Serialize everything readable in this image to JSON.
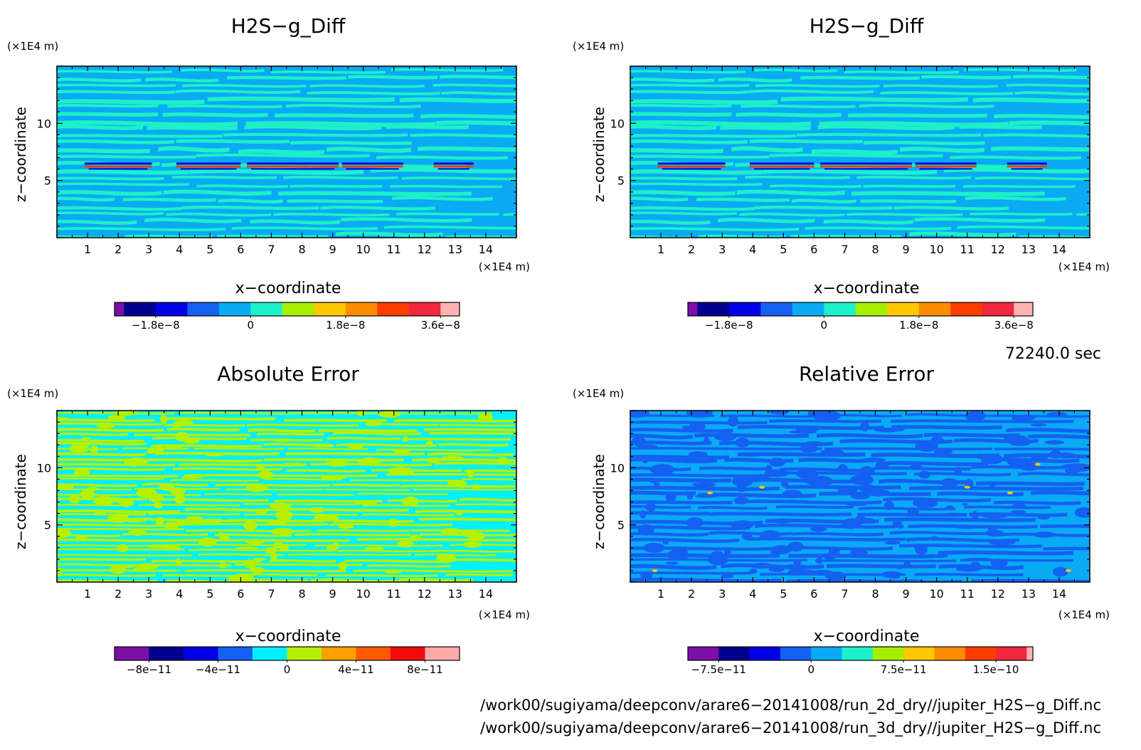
{
  "panels": [
    {
      "id": "top-left",
      "title": "H2S−g_Diff",
      "x_unit": "(×1E4 m)",
      "z_unit": "(×1E4 m)",
      "xlabel": "x−coordinate",
      "ylabel": "z−coordinate",
      "x_ticks": [
        "1",
        "2",
        "3",
        "4",
        "5",
        "6",
        "7",
        "8",
        "9",
        "10",
        "11",
        "12",
        "13",
        "14"
      ],
      "y_ticks": [
        "5",
        "10"
      ],
      "colorbar": {
        "colors": [
          "#7b0fa6",
          "#00008c",
          "#0000e6",
          "#1460f0",
          "#0aaaf5",
          "#1ef0c8",
          "#a6ee00",
          "#ffc800",
          "#ff8c00",
          "#ff3c00",
          "#f0283c",
          "#ffb4b4"
        ],
        "widths": [
          0.3,
          1,
          1,
          1,
          1,
          1,
          1,
          1,
          1,
          1,
          1,
          0.6
        ],
        "labels": [
          "−1.8e−8",
          "0",
          "1.8e−8",
          "3.6e−8"
        ],
        "label_pos": [
          1.3,
          4.3,
          7.3,
          10.3
        ]
      },
      "field": {
        "background": "#0aaaf5",
        "stripe": "#1ef0c8",
        "accent_cool": "#0000e6",
        "accent_warm": "#ff3c00",
        "style": "diff"
      }
    },
    {
      "id": "top-right",
      "title": "H2S−g_Diff",
      "x_unit": "(×1E4 m)",
      "z_unit": "(×1E4 m)",
      "xlabel": "x−coordinate",
      "ylabel": "z−coordinate",
      "x_ticks": [
        "1",
        "2",
        "3",
        "4",
        "5",
        "6",
        "7",
        "8",
        "9",
        "10",
        "11",
        "12",
        "13",
        "14"
      ],
      "y_ticks": [
        "5",
        "10"
      ],
      "colorbar": {
        "colors": [
          "#7b0fa6",
          "#00008c",
          "#0000e6",
          "#1460f0",
          "#0aaaf5",
          "#1ef0c8",
          "#a6ee00",
          "#ffc800",
          "#ff8c00",
          "#ff3c00",
          "#f0283c",
          "#ffb4b4"
        ],
        "widths": [
          0.3,
          1,
          1,
          1,
          1,
          1,
          1,
          1,
          1,
          1,
          1,
          0.6
        ],
        "labels": [
          "−1.8e−8",
          "0",
          "1.8e−8",
          "3.6e−8"
        ],
        "label_pos": [
          1.3,
          4.3,
          7.3,
          10.3
        ]
      },
      "field": {
        "background": "#0aaaf5",
        "stripe": "#1ef0c8",
        "accent_cool": "#0000e6",
        "accent_warm": "#ff3c00",
        "style": "diff"
      }
    },
    {
      "id": "bottom-left",
      "title": "Absolute Error",
      "x_unit": "(×1E4 m)",
      "z_unit": "(×1E4 m)",
      "xlabel": "x−coordinate",
      "ylabel": "z−coordinate",
      "x_ticks": [
        "1",
        "2",
        "3",
        "4",
        "5",
        "6",
        "7",
        "8",
        "9",
        "10",
        "11",
        "12",
        "13",
        "14"
      ],
      "y_ticks": [
        "5",
        "10"
      ],
      "colorbar": {
        "colors": [
          "#7b0fa6",
          "#00008c",
          "#0000e6",
          "#1460f0",
          "#00f0ff",
          "#b4f000",
          "#ffa000",
          "#ff5a00",
          "#f00a0a",
          "#ffaaaa"
        ],
        "widths": [
          1,
          1,
          1,
          1,
          1,
          1,
          1,
          1,
          1,
          1
        ],
        "labels": [
          "−8e−11",
          "−4e−11",
          "0",
          "4e−11",
          "8e−11"
        ],
        "label_pos": [
          1,
          3,
          5,
          7,
          9
        ]
      },
      "field": {
        "background": "#00f0ff",
        "stripe": "#b4f000",
        "style": "abs"
      }
    },
    {
      "id": "bottom-right",
      "title": "Relative Error",
      "x_unit": "(×1E4 m)",
      "z_unit": "(×1E4 m)",
      "xlabel": "x−coordinate",
      "ylabel": "z−coordinate",
      "x_ticks": [
        "1",
        "2",
        "3",
        "4",
        "5",
        "6",
        "7",
        "8",
        "9",
        "10",
        "11",
        "12",
        "13",
        "14"
      ],
      "y_ticks": [
        "5",
        "10"
      ],
      "colorbar": {
        "colors": [
          "#7b0fa6",
          "#00008c",
          "#0000e6",
          "#1460f0",
          "#0aaaf5",
          "#1ef0c8",
          "#a6ee00",
          "#ffc800",
          "#ff8c00",
          "#ff3c00",
          "#f0283c",
          "#ffb4b4"
        ],
        "widths": [
          1,
          1,
          1,
          1,
          1,
          1,
          1,
          1,
          1,
          1,
          1,
          0.2
        ],
        "labels": [
          "−7.5e−11",
          "0",
          "7.5e−11",
          "1.5e−10"
        ],
        "label_pos": [
          1,
          4,
          7,
          10
        ]
      },
      "field": {
        "background": "#0aaaf5",
        "stripe": "#1460f0",
        "accent_warm": "#ffc800",
        "style": "rel"
      }
    }
  ],
  "time_label": "72240.0 sec",
  "footer": {
    "path1": "/work00/sugiyama/deepconv/arare6−20141008/run_2d_dry//jupiter_H2S−g_Diff.nc",
    "path2": "/work00/sugiyama/deepconv/arare6−20141008/run_3d_dry//jupiter_H2S−g_Diff.nc"
  },
  "chart_data": [
    {
      "type": "heatmap",
      "title": "H2S−g_Diff",
      "xlabel": "x−coordinate",
      "ylabel": "z−coordinate",
      "x_unit": "×1E4 m",
      "y_unit": "×1E4 m",
      "xlim": [
        0,
        15
      ],
      "ylim": [
        0,
        15
      ],
      "x_ticks": [
        1,
        2,
        3,
        4,
        5,
        6,
        7,
        8,
        9,
        10,
        11,
        12,
        13,
        14
      ],
      "y_ticks": [
        5,
        10
      ],
      "colorbar_ticks": [
        -1.8e-08,
        0,
        1.8e-08,
        3.6e-08
      ],
      "features": [
        {
          "z": 6.2,
          "x_range": [
            0.9,
            13.6
          ],
          "note": "thin band of strong +/- values"
        }
      ]
    },
    {
      "type": "heatmap",
      "title": "H2S−g_Diff",
      "xlabel": "x−coordinate",
      "ylabel": "z−coordinate",
      "x_unit": "×1E4 m",
      "y_unit": "×1E4 m",
      "xlim": [
        0,
        15
      ],
      "ylim": [
        0,
        15
      ],
      "x_ticks": [
        1,
        2,
        3,
        4,
        5,
        6,
        7,
        8,
        9,
        10,
        11,
        12,
        13,
        14
      ],
      "y_ticks": [
        5,
        10
      ],
      "colorbar_ticks": [
        -1.8e-08,
        0,
        1.8e-08,
        3.6e-08
      ],
      "features": [
        {
          "z": 6.2,
          "x_range": [
            0.9,
            13.6
          ],
          "note": "thin band of strong +/- values"
        }
      ]
    },
    {
      "type": "heatmap",
      "title": "Absolute Error",
      "xlabel": "x−coordinate",
      "ylabel": "z−coordinate",
      "x_unit": "×1E4 m",
      "y_unit": "×1E4 m",
      "xlim": [
        0,
        15
      ],
      "ylim": [
        0,
        15
      ],
      "x_ticks": [
        1,
        2,
        3,
        4,
        5,
        6,
        7,
        8,
        9,
        10,
        11,
        12,
        13,
        14
      ],
      "y_ticks": [
        5,
        10
      ],
      "colorbar_ticks": [
        -8e-11,
        -4e-11,
        0,
        4e-11,
        8e-11
      ]
    },
    {
      "type": "heatmap",
      "title": "Relative Error",
      "xlabel": "x−coordinate",
      "ylabel": "z−coordinate",
      "x_unit": "×1E4 m",
      "y_unit": "×1E4 m",
      "xlim": [
        0,
        15
      ],
      "ylim": [
        0,
        15
      ],
      "x_ticks": [
        1,
        2,
        3,
        4,
        5,
        6,
        7,
        8,
        9,
        10,
        11,
        12,
        13,
        14
      ],
      "y_ticks": [
        5,
        10
      ],
      "colorbar_ticks": [
        -7.5e-11,
        0,
        7.5e-11,
        1.5e-10
      ]
    }
  ]
}
